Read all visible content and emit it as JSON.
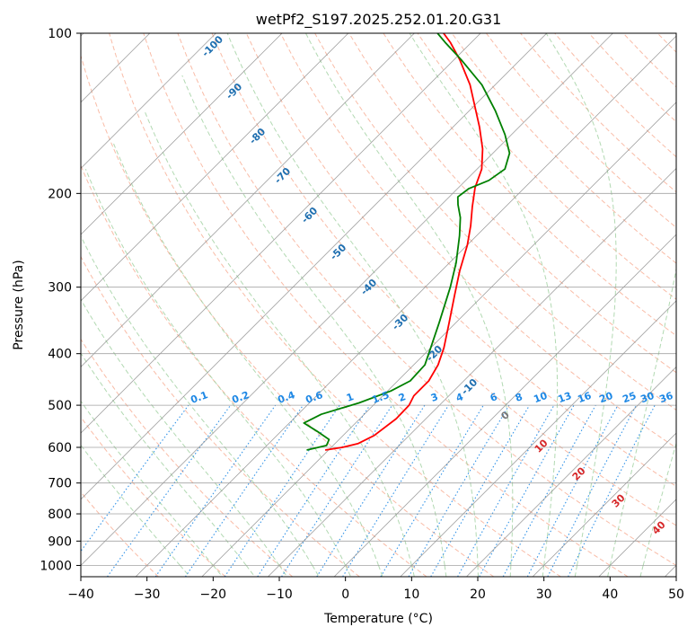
{
  "chart_data": {
    "type": "line",
    "subtype": "skew-t log-p diagram",
    "title": "wetPf2_S197.2025.252.01.20.G31",
    "xlabel": "Temperature (°C)",
    "ylabel": "Pressure (hPa)",
    "xlim": [
      -40,
      50
    ],
    "ylim": [
      1050,
      100
    ],
    "y_scale": "log",
    "x_ticks": [
      "−40",
      "−30",
      "−20",
      "−10",
      "0",
      "10",
      "20",
      "30",
      "40",
      "50"
    ],
    "x_tick_values": [
      -40,
      -30,
      -20,
      -10,
      0,
      10,
      20,
      30,
      40,
      50
    ],
    "y_ticks": [
      "100",
      "200",
      "300",
      "400",
      "500",
      "600",
      "700",
      "800",
      "900",
      "1000"
    ],
    "y_tick_values": [
      100,
      200,
      300,
      400,
      500,
      600,
      700,
      800,
      900,
      1000
    ],
    "colors": {
      "temperature": "#ff0000",
      "dewpoint": "#008000",
      "isotherm": "#888888",
      "dry_adiabat": "#f7a58a",
      "moist_adiabat": "#9fd09f",
      "mixing_ratio": "#1e88e5",
      "isotherm_label": "#1f6fb0",
      "dry_adiabat_label": "#d62728"
    },
    "series": [
      {
        "name": "Temperature",
        "color": "#ff0000",
        "points": [
          {
            "p": 607,
            "t": -20.5
          },
          {
            "p": 600,
            "t": -18.3
          },
          {
            "p": 590,
            "t": -16.5
          },
          {
            "p": 570,
            "t": -15.3
          },
          {
            "p": 530,
            "t": -14.5
          },
          {
            "p": 500,
            "t": -14.6
          },
          {
            "p": 480,
            "t": -15.3
          },
          {
            "p": 450,
            "t": -15.3
          },
          {
            "p": 420,
            "t": -16.3
          },
          {
            "p": 390,
            "t": -18.0
          },
          {
            "p": 350,
            "t": -21.0
          },
          {
            "p": 310,
            "t": -24.4
          },
          {
            "p": 280,
            "t": -27.2
          },
          {
            "p": 250,
            "t": -30.0
          },
          {
            "p": 230,
            "t": -32.4
          },
          {
            "p": 212,
            "t": -35.0
          },
          {
            "p": 195,
            "t": -37.5
          },
          {
            "p": 180,
            "t": -39.3
          },
          {
            "p": 165,
            "t": -42.2
          },
          {
            "p": 150,
            "t": -46.0
          },
          {
            "p": 125,
            "t": -53.8
          },
          {
            "p": 112,
            "t": -59.2
          },
          {
            "p": 104,
            "t": -63.2
          },
          {
            "p": 100,
            "t": -65.6
          }
        ]
      },
      {
        "name": "Dewpoint",
        "color": "#008000",
        "points": [
          {
            "p": 607,
            "t": -23.3
          },
          {
            "p": 595,
            "t": -21.0
          },
          {
            "p": 580,
            "t": -21.5
          },
          {
            "p": 560,
            "t": -24.5
          },
          {
            "p": 540,
            "t": -27.8
          },
          {
            "p": 520,
            "t": -26.5
          },
          {
            "p": 495,
            "t": -22.5
          },
          {
            "p": 470,
            "t": -19.5
          },
          {
            "p": 450,
            "t": -18.1
          },
          {
            "p": 420,
            "t": -18.3
          },
          {
            "p": 390,
            "t": -20.0
          },
          {
            "p": 350,
            "t": -22.5
          },
          {
            "p": 300,
            "t": -26.2
          },
          {
            "p": 270,
            "t": -29.0
          },
          {
            "p": 240,
            "t": -32.6
          },
          {
            "p": 222,
            "t": -35.2
          },
          {
            "p": 210,
            "t": -37.5
          },
          {
            "p": 203,
            "t": -38.7
          },
          {
            "p": 196,
            "t": -38.3
          },
          {
            "p": 189,
            "t": -36.5
          },
          {
            "p": 180,
            "t": -35.8
          },
          {
            "p": 168,
            "t": -37.5
          },
          {
            "p": 155,
            "t": -41.0
          },
          {
            "p": 140,
            "t": -46.0
          },
          {
            "p": 125,
            "t": -52.0
          },
          {
            "p": 112,
            "t": -59.0
          },
          {
            "p": 104,
            "t": -64.0
          },
          {
            "p": 100,
            "t": -66.5
          }
        ]
      }
    ],
    "isotherm_labels": [
      "-100",
      "-90",
      "-80",
      "-70",
      "-60",
      "-50",
      "-40",
      "-30",
      "-20",
      "-10",
      "0"
    ],
    "isotherm_label_values": [
      -100,
      -90,
      -80,
      -70,
      -60,
      -50,
      -40,
      -30,
      -20,
      -10,
      0
    ],
    "mixing_ratio_labels": [
      "0.1",
      "0.2",
      "0.4",
      "0.6",
      "1",
      "1.5",
      "2",
      "3",
      "4",
      "6",
      "8",
      "10",
      "13",
      "16",
      "20",
      "25",
      "30",
      "36"
    ],
    "mixing_ratio_label_values": [
      0.1,
      0.2,
      0.4,
      0.6,
      1,
      1.5,
      2,
      3,
      4,
      6,
      8,
      10,
      13,
      16,
      20,
      25,
      30,
      36
    ],
    "dry_adiabat_labels": [
      "10",
      "20",
      "30",
      "40"
    ],
    "dry_adiabat_label_values": [
      10,
      20,
      30,
      40
    ]
  }
}
